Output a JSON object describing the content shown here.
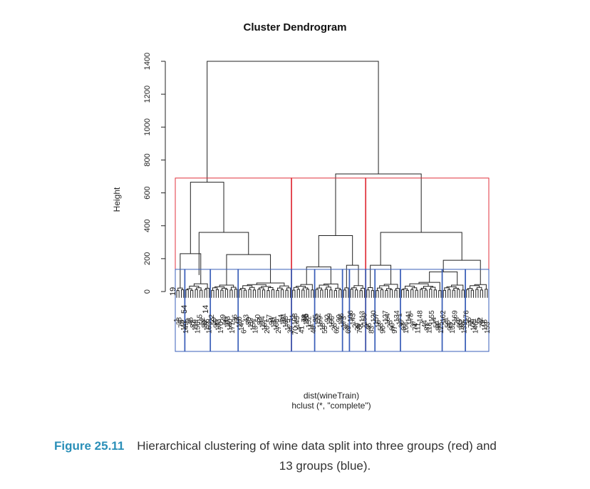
{
  "chart_data": {
    "type": "dendrogram",
    "title": "Cluster Dendrogram",
    "ylabel": "Height",
    "xlabel_line1": "dist(wineTrain)",
    "xlabel_line2": "hclust (*, \"complete\")",
    "yticks": [
      0,
      200,
      400,
      600,
      800,
      1000,
      1200,
      1400
    ],
    "ylim": [
      0,
      1420
    ],
    "merge_heights": {
      "root": 1400,
      "left_group": 665,
      "right_super_group": 715,
      "left_sub_a": 360,
      "left_sub_b": 225,
      "middle_group": 340,
      "right_group": 360,
      "right_sub": 190,
      "middle_sub_a": 150,
      "middle_sub_b": 160,
      "right_sub_a": 160,
      "small_left": 230
    },
    "cut_three_groups": {
      "height": 690,
      "groups": 3,
      "color": "#e0323c"
    },
    "cut_thirteen_groups": {
      "height": 135,
      "groups": 13,
      "color": "#3a5fb8"
    },
    "visible_leaf_labels": [
      "19",
      "54",
      "14",
      "70",
      "95",
      "3"
    ],
    "n_leaves": 135
  },
  "figure_caption": {
    "number": "Figure 25.11",
    "text_line1": "Hierarchical clustering of wine data split into three groups (red) and",
    "text_line2": "13 groups (blue)."
  }
}
